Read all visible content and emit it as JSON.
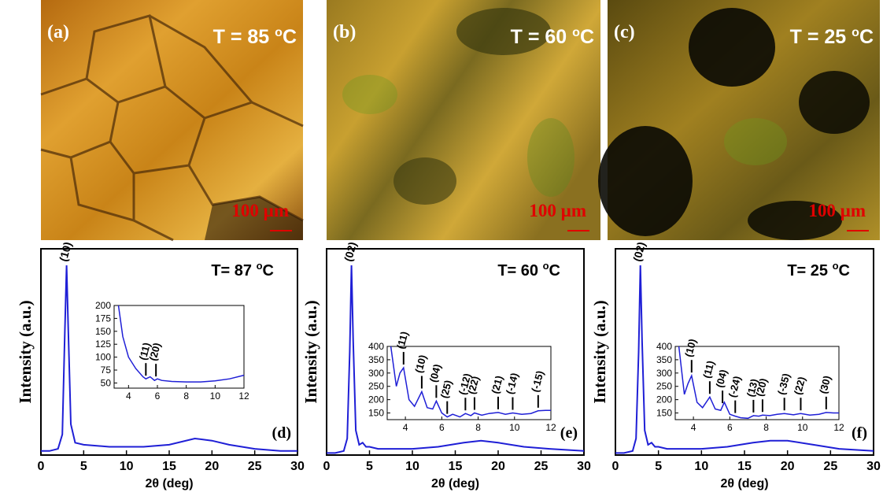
{
  "images": [
    {
      "label": "(a)",
      "temp": "T = 85 ",
      "temp_sup": "o",
      "temp_unit": "C",
      "scale": "100 µm"
    },
    {
      "label": "(b)",
      "temp": "T = 60 ",
      "temp_sup": "o",
      "temp_unit": "C",
      "scale": "100 µm"
    },
    {
      "label": "(c)",
      "temp": "T = 25 ",
      "temp_sup": "o",
      "temp_unit": "C",
      "scale": "100 µm"
    }
  ],
  "chart_data": [
    {
      "type": "line",
      "panel": "(d)",
      "title": "T= 87 ",
      "title_sup": "o",
      "title_unit": "C",
      "x_label": "2θ (deg)",
      "y_label": "Intensity (a.u.)",
      "color": "#1f1fd6",
      "xlim": [
        0,
        30
      ],
      "xticks": [
        0,
        5,
        10,
        15,
        20,
        25,
        30
      ],
      "ylim": [
        0,
        100
      ],
      "x": [
        0,
        1,
        2,
        2.5,
        2.8,
        3,
        3.2,
        3.5,
        4,
        5,
        8,
        10,
        12,
        15,
        18,
        20,
        22,
        25,
        28,
        30
      ],
      "values": [
        2,
        2,
        3,
        10,
        60,
        92,
        60,
        15,
        6,
        5,
        4,
        4,
        4,
        5,
        8,
        7,
        5,
        3,
        2,
        2
      ],
      "annotations": [
        {
          "label": "(10)",
          "x": 3
        }
      ],
      "inset": {
        "type": "line",
        "xlim": [
          3,
          12
        ],
        "xticks": [
          4,
          6,
          8,
          10,
          12
        ],
        "ylim": [
          40,
          200
        ],
        "yticks": [
          50,
          75,
          100,
          125,
          150,
          175,
          200
        ],
        "x": [
          3.3,
          3.6,
          4,
          4.5,
          5,
          5.2,
          5.5,
          5.8,
          6,
          6.3,
          7,
          8,
          9,
          10,
          11,
          12
        ],
        "values": [
          200,
          140,
          100,
          78,
          62,
          58,
          62,
          55,
          58,
          55,
          53,
          52,
          52,
          54,
          58,
          65
        ],
        "peaks": [
          {
            "label": "(11)",
            "x": 5.2
          },
          {
            "label": "(20)",
            "x": 5.9
          }
        ]
      }
    },
    {
      "type": "line",
      "panel": "(e)",
      "title": "T= 60 ",
      "title_sup": "o",
      "title_unit": "C",
      "x_label": "2θ (deg)",
      "y_label": "Intensity (a.u.)",
      "color": "#1f1fd6",
      "xlim": [
        0,
        30
      ],
      "xticks": [
        0,
        5,
        10,
        15,
        20,
        25,
        30
      ],
      "ylim": [
        0,
        100
      ],
      "x": [
        0,
        1,
        2,
        2.4,
        2.7,
        2.9,
        3.1,
        3.4,
        3.8,
        4.2,
        4.6,
        5,
        6,
        8,
        10,
        13,
        16,
        18,
        20,
        23,
        26,
        30
      ],
      "values": [
        1,
        1,
        2,
        8,
        50,
        92,
        55,
        12,
        5,
        6,
        4,
        4,
        3,
        3,
        3,
        4,
        6,
        7,
        6,
        4,
        3,
        2
      ],
      "annotations": [
        {
          "label": "(02)",
          "x": 2.9
        }
      ],
      "inset": {
        "type": "line",
        "xlim": [
          3,
          12
        ],
        "xticks": [
          4,
          6,
          8,
          10,
          12
        ],
        "ylim": [
          125,
          400
        ],
        "yticks": [
          150,
          200,
          250,
          300,
          350,
          400
        ],
        "x": [
          3.2,
          3.5,
          3.7,
          3.9,
          4.2,
          4.5,
          4.9,
          5.2,
          5.5,
          5.7,
          6,
          6.3,
          6.6,
          7,
          7.3,
          7.6,
          7.8,
          8.2,
          8.6,
          9.1,
          9.5,
          9.9,
          10.4,
          10.9,
          11.3,
          11.7,
          12
        ],
        "values": [
          400,
          250,
          300,
          320,
          200,
          175,
          230,
          170,
          165,
          195,
          150,
          135,
          145,
          135,
          148,
          140,
          150,
          142,
          148,
          152,
          145,
          150,
          145,
          148,
          158,
          160,
          160
        ],
        "peaks": [
          {
            "label": "(11)",
            "x": 3.9
          },
          {
            "label": "(10)",
            "x": 4.9
          },
          {
            "label": "(04)",
            "x": 5.7
          },
          {
            "label": "(25)",
            "x": 6.3
          },
          {
            "label": "(-12)",
            "x": 7.3
          },
          {
            "label": "(22)",
            "x": 7.8
          },
          {
            "label": "(21)",
            "x": 9.1
          },
          {
            "label": "(-14)",
            "x": 9.9
          },
          {
            "label": "(-15)",
            "x": 11.3
          }
        ]
      }
    },
    {
      "type": "line",
      "panel": "(f)",
      "title": "T= 25 ",
      "title_sup": "o",
      "title_unit": "C",
      "x_label": "2θ (deg)",
      "y_label": "Intensity (a.u.)",
      "color": "#1f1fd6",
      "xlim": [
        0,
        30
      ],
      "xticks": [
        0,
        5,
        10,
        15,
        20,
        25,
        30
      ],
      "ylim": [
        0,
        100
      ],
      "x": [
        0,
        1,
        2,
        2.4,
        2.7,
        2.9,
        3.1,
        3.4,
        3.8,
        4.2,
        4.6,
        5,
        6,
        8,
        10,
        13,
        16,
        18,
        20,
        23,
        26,
        30
      ],
      "values": [
        1,
        1,
        2,
        8,
        50,
        92,
        55,
        12,
        5,
        6,
        4,
        4,
        3,
        3,
        3,
        4,
        6,
        7,
        7,
        5,
        3,
        2
      ],
      "annotations": [
        {
          "label": "(02)",
          "x": 2.9
        }
      ],
      "inset": {
        "type": "line",
        "xlim": [
          3,
          12
        ],
        "xticks": [
          4,
          6,
          8,
          10,
          12
        ],
        "ylim": [
          125,
          400
        ],
        "yticks": [
          150,
          200,
          250,
          300,
          350,
          400
        ],
        "x": [
          3.2,
          3.5,
          3.7,
          3.9,
          4.2,
          4.5,
          4.9,
          5.2,
          5.5,
          5.7,
          6,
          6.3,
          6.6,
          7,
          7.3,
          7.6,
          7.8,
          8.2,
          8.6,
          9,
          9.5,
          9.9,
          10.4,
          10.9,
          11.3,
          11.7,
          12
        ],
        "values": [
          400,
          220,
          260,
          290,
          190,
          170,
          210,
          165,
          160,
          190,
          145,
          138,
          132,
          130,
          140,
          138,
          142,
          140,
          145,
          148,
          143,
          148,
          142,
          145,
          152,
          150,
          150
        ],
        "peaks": [
          {
            "label": "(10)",
            "x": 3.9
          },
          {
            "label": "(11)",
            "x": 4.9
          },
          {
            "label": "(04)",
            "x": 5.6
          },
          {
            "label": "(-24)",
            "x": 6.3
          },
          {
            "label": "(13)",
            "x": 7.3
          },
          {
            "label": "(20)",
            "x": 7.8
          },
          {
            "label": "(-35)",
            "x": 9
          },
          {
            "label": "(22)",
            "x": 9.9
          },
          {
            "label": "(30)",
            "x": 11.3
          }
        ]
      }
    }
  ]
}
